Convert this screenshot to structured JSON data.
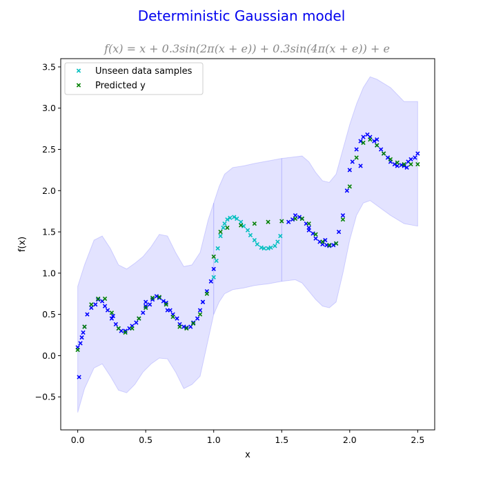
{
  "chart_data": {
    "type": "scatter",
    "title": "Deterministic Gaussian model",
    "subtitle": "f(x) = x + 0.3sin(2π(x + e)) + 0.3sin(4π(x + e)) + e",
    "xlabel": "x",
    "ylabel": "f(x)",
    "xlim": [
      -0.125,
      2.625
    ],
    "ylim": [
      -0.9,
      3.6
    ],
    "x_ticks": [
      "0.0",
      "0.5",
      "1.0",
      "1.5",
      "2.0",
      "2.5"
    ],
    "y_ticks": [
      "-0.5",
      "0.0",
      "0.5",
      "1.0",
      "1.5",
      "2.0",
      "2.5",
      "3.0",
      "3.5"
    ],
    "legend": {
      "position": "top-left",
      "entries": [
        "Unseen data samples",
        "Predicted y"
      ]
    },
    "colors": {
      "training": "#0000ff",
      "unseen": "#00bfbf",
      "predicted": "#008000",
      "band": "#0000ff",
      "title": "#0000ee",
      "subtitle": "#888888"
    },
    "series": [
      {
        "name": "Unseen data samples",
        "x": [
          1.0,
          1.02,
          1.03,
          1.05,
          1.07,
          1.08,
          1.1,
          1.12,
          1.15,
          1.17,
          1.2,
          1.22,
          1.25,
          1.27,
          1.3,
          1.32,
          1.35,
          1.37,
          1.4,
          1.42,
          1.45,
          1.47,
          1.49
        ],
        "y": [
          0.95,
          1.15,
          1.3,
          1.45,
          1.55,
          1.6,
          1.65,
          1.67,
          1.68,
          1.66,
          1.62,
          1.57,
          1.52,
          1.46,
          1.4,
          1.35,
          1.31,
          1.3,
          1.3,
          1.31,
          1.33,
          1.38,
          1.45
        ]
      },
      {
        "name": "Predicted y",
        "x": [
          0.0,
          0.05,
          0.1,
          0.15,
          0.2,
          0.25,
          0.3,
          0.35,
          0.4,
          0.45,
          0.5,
          0.55,
          0.6,
          0.65,
          0.7,
          0.75,
          0.8,
          0.85,
          0.9,
          0.95,
          1.0,
          1.05,
          1.1,
          1.2,
          1.3,
          1.4,
          1.5,
          1.6,
          1.65,
          1.7,
          1.75,
          1.8,
          1.85,
          1.9,
          1.95,
          2.0,
          2.05,
          2.1,
          2.15,
          2.2,
          2.25,
          2.3,
          2.35,
          2.4,
          2.45,
          2.5
        ],
        "y": [
          0.07,
          0.35,
          0.62,
          0.69,
          0.69,
          0.52,
          0.33,
          0.28,
          0.33,
          0.45,
          0.58,
          0.7,
          0.71,
          0.62,
          0.47,
          0.35,
          0.33,
          0.39,
          0.5,
          0.75,
          1.2,
          1.5,
          1.55,
          1.58,
          1.6,
          1.62,
          1.63,
          1.66,
          1.66,
          1.6,
          1.47,
          1.38,
          1.34,
          1.36,
          1.65,
          2.05,
          2.4,
          2.58,
          2.62,
          2.55,
          2.45,
          2.38,
          2.34,
          2.32,
          2.32,
          2.32
        ]
      }
    ],
    "training_points": {
      "x": [
        0.0,
        0.02,
        0.03,
        0.05,
        0.07,
        0.1,
        0.13,
        0.15,
        0.18,
        0.2,
        0.22,
        0.25,
        0.28,
        0.3,
        0.32,
        0.35,
        0.38,
        0.4,
        0.43,
        0.45,
        0.48,
        0.5,
        0.53,
        0.55,
        0.58,
        0.6,
        0.63,
        0.65,
        0.68,
        0.7,
        0.73,
        0.75,
        0.78,
        0.8,
        0.83,
        0.85,
        0.88,
        0.9,
        0.92,
        0.95,
        0.98,
        1.0,
        1.55,
        1.58,
        1.6,
        1.63,
        1.65,
        1.68,
        1.7,
        1.73,
        1.75,
        1.78,
        1.8,
        1.83,
        1.85,
        1.88,
        1.9,
        1.92,
        1.95,
        1.98,
        2.0,
        2.02,
        2.05,
        2.08,
        2.1,
        2.13,
        2.15,
        2.18,
        2.2,
        2.23,
        2.25,
        2.28,
        2.3,
        2.33,
        2.35,
        2.38,
        2.4,
        2.43,
        2.45,
        2.48,
        2.5,
        0.01,
        0.04,
        0.26,
        0.5,
        0.66,
        0.92,
        1.7,
        1.82,
        2.08,
        2.2,
        2.42
      ],
      "y": [
        0.1,
        0.15,
        0.22,
        0.35,
        0.5,
        0.58,
        0.62,
        0.68,
        0.66,
        0.6,
        0.55,
        0.45,
        0.38,
        0.33,
        0.3,
        0.3,
        0.33,
        0.36,
        0.4,
        0.45,
        0.52,
        0.6,
        0.62,
        0.68,
        0.72,
        0.7,
        0.66,
        0.64,
        0.55,
        0.5,
        0.45,
        0.38,
        0.35,
        0.34,
        0.35,
        0.4,
        0.45,
        0.55,
        0.65,
        0.78,
        0.9,
        1.05,
        1.62,
        1.65,
        1.7,
        1.68,
        1.66,
        1.6,
        1.55,
        1.48,
        1.42,
        1.38,
        1.35,
        1.34,
        1.33,
        1.34,
        1.36,
        1.5,
        1.7,
        2.0,
        2.25,
        2.35,
        2.5,
        2.6,
        2.65,
        2.68,
        2.65,
        2.6,
        2.55,
        2.5,
        2.45,
        2.4,
        2.35,
        2.32,
        2.3,
        2.31,
        2.3,
        2.35,
        2.38,
        2.4,
        2.45,
        -0.26,
        0.28,
        0.48,
        0.65,
        0.55,
        0.65,
        1.52,
        1.4,
        2.3,
        2.62,
        2.28
      ]
    },
    "confidence_band": {
      "x": [
        0.0,
        0.05,
        0.12,
        0.18,
        0.24,
        0.3,
        0.36,
        0.42,
        0.48,
        0.54,
        0.6,
        0.66,
        0.72,
        0.78,
        0.84,
        0.9,
        0.96,
        1.0,
        1.04,
        1.08,
        1.14,
        1.22,
        1.3,
        1.4,
        1.5,
        1.6,
        1.65,
        1.7,
        1.75,
        1.8,
        1.85,
        1.9,
        1.95,
        2.0,
        2.05,
        2.1,
        2.15,
        2.2,
        2.3,
        2.4,
        2.5
      ],
      "upper": [
        0.84,
        1.1,
        1.4,
        1.45,
        1.3,
        1.1,
        1.05,
        1.12,
        1.2,
        1.32,
        1.47,
        1.45,
        1.25,
        1.08,
        1.1,
        1.25,
        1.65,
        1.85,
        2.05,
        2.2,
        2.28,
        2.3,
        2.33,
        2.36,
        2.39,
        2.41,
        2.42,
        2.35,
        2.22,
        2.12,
        2.1,
        2.2,
        2.5,
        2.8,
        3.05,
        3.25,
        3.38,
        3.35,
        3.25,
        3.08,
        3.08
      ],
      "lower": [
        -0.69,
        -0.4,
        -0.15,
        -0.1,
        -0.25,
        -0.42,
        -0.45,
        -0.35,
        -0.2,
        -0.1,
        -0.03,
        -0.04,
        -0.2,
        -0.4,
        -0.35,
        -0.25,
        0.2,
        0.5,
        0.65,
        0.75,
        0.8,
        0.82,
        0.85,
        0.87,
        0.9,
        0.92,
        0.88,
        0.78,
        0.68,
        0.6,
        0.58,
        0.65,
        1.0,
        1.4,
        1.7,
        1.85,
        1.88,
        1.82,
        1.7,
        1.6,
        1.57
      ]
    }
  }
}
